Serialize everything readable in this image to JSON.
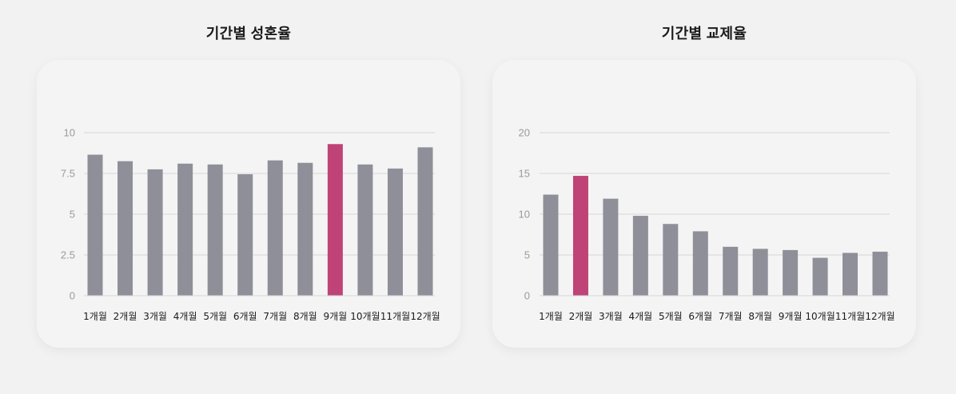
{
  "colors": {
    "bar": "#8e8f98",
    "highlight": "#bf4377",
    "background": "#f2f2f3",
    "card": "#f4f4f4"
  },
  "chart_data": [
    {
      "type": "bar",
      "title": "기간별 성혼율",
      "categories": [
        "1개월",
        "2개월",
        "3개월",
        "4개월",
        "5개월",
        "6개월",
        "7개월",
        "8개월",
        "9개월",
        "10개월",
        "11개월",
        "12개월"
      ],
      "values": [
        8.65,
        8.25,
        7.75,
        8.1,
        8.05,
        7.45,
        8.3,
        8.15,
        9.3,
        8.05,
        7.8,
        9.1
      ],
      "highlight_index": 8,
      "ylim": [
        0,
        10
      ],
      "yticks": [
        0,
        2.5,
        5,
        7.5,
        10
      ],
      "ytick_labels": [
        "0",
        "2.5",
        "5",
        "7.5",
        "10"
      ],
      "grid": true,
      "xlabel": "",
      "ylabel": ""
    },
    {
      "type": "bar",
      "title": "기간별 교제율",
      "categories": [
        "1개월",
        "2개월",
        "3개월",
        "4개월",
        "5개월",
        "6개월",
        "7개월",
        "8개월",
        "9개월",
        "10개월",
        "11개월",
        "12개월"
      ],
      "values": [
        12.4,
        14.7,
        11.9,
        9.8,
        8.8,
        7.9,
        6.0,
        5.75,
        5.6,
        4.65,
        5.25,
        5.4
      ],
      "highlight_index": 1,
      "ylim": [
        0,
        20
      ],
      "yticks": [
        0,
        5,
        10,
        15,
        20
      ],
      "ytick_labels": [
        "0",
        "5",
        "10",
        "15",
        "20"
      ],
      "grid": true,
      "xlabel": "",
      "ylabel": ""
    }
  ]
}
